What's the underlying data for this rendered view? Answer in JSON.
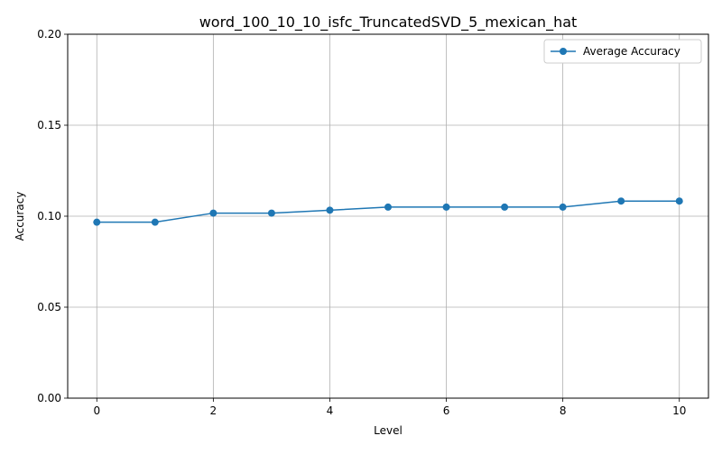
{
  "chart_data": {
    "type": "line",
    "title": "word_100_10_10_isfc_TruncatedSVD_5_mexican_hat",
    "xlabel": "Level",
    "ylabel": "Accuracy",
    "xlim": [
      -0.5,
      10.5
    ],
    "ylim": [
      0.0,
      0.2
    ],
    "xticks": [
      0,
      2,
      4,
      6,
      8,
      10
    ],
    "xtick_labels": [
      "0",
      "2",
      "4",
      "6",
      "8",
      "10"
    ],
    "yticks": [
      0.0,
      0.05,
      0.1,
      0.15,
      0.2
    ],
    "ytick_labels": [
      "0.00",
      "0.05",
      "0.10",
      "0.15",
      "0.20"
    ],
    "grid": true,
    "legend_position": "top-right",
    "series": [
      {
        "name": "Average Accuracy",
        "color": "#1f77b4",
        "marker": "circle",
        "x": [
          0,
          1,
          2,
          3,
          4,
          5,
          6,
          7,
          8,
          9,
          10
        ],
        "values": [
          0.0967,
          0.0967,
          0.1017,
          0.1017,
          0.1033,
          0.105,
          0.105,
          0.105,
          0.105,
          0.1083,
          0.1083
        ]
      }
    ]
  }
}
